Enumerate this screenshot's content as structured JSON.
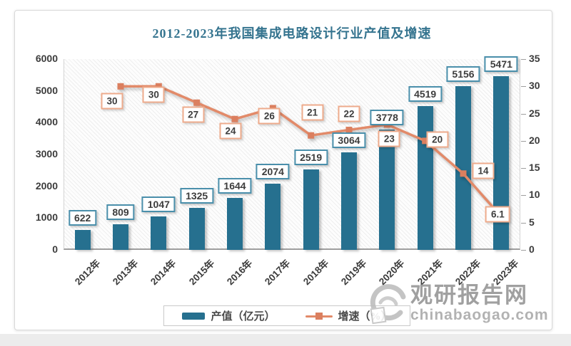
{
  "watermark": {
    "brand": "观研报告网",
    "domain": "chinabaogao.com"
  },
  "chart_data": {
    "type": "combo",
    "title": "2012-2023年我国集成电路设计行业产值及增速",
    "title_color": "#35748f",
    "categories": [
      "2012年",
      "2013年",
      "2014年",
      "2015年",
      "2016年",
      "2017年",
      "2018年",
      "2019年",
      "2020年",
      "2021年",
      "2022年",
      "2023年"
    ],
    "series": [
      {
        "name": "产值（亿元）",
        "type": "bar",
        "axis": "left",
        "color": "#26708f",
        "label_border_color": "#4a8fab",
        "values": [
          622,
          809,
          1047,
          1325,
          1644,
          2074,
          2519,
          3064,
          3778,
          4519,
          5156,
          5471
        ]
      },
      {
        "name": "增速（%）",
        "type": "line",
        "axis": "right",
        "color": "#e28a69",
        "marker_color": "#db7f5f",
        "label_border_color": "#eeab8c",
        "values": [
          null,
          30,
          30,
          27,
          24,
          26,
          21,
          22,
          23,
          20,
          14,
          6.1
        ]
      }
    ],
    "left_axis": {
      "min": 0,
      "max": 6000,
      "step": 1000
    },
    "right_axis": {
      "min": 0,
      "max": 35,
      "step": 5
    },
    "grid": false,
    "legend_position": "bottom",
    "line_label_offsets": [
      null,
      [
        -12,
        21
      ],
      [
        -7,
        12
      ],
      [
        -5,
        17
      ],
      [
        -6,
        17
      ],
      [
        -5,
        11
      ],
      [
        2,
        -32
      ],
      [
        0,
        -23
      ],
      [
        3,
        20
      ],
      [
        17,
        -2
      ],
      [
        28,
        -4
      ],
      [
        -5,
        -3
      ]
    ]
  }
}
